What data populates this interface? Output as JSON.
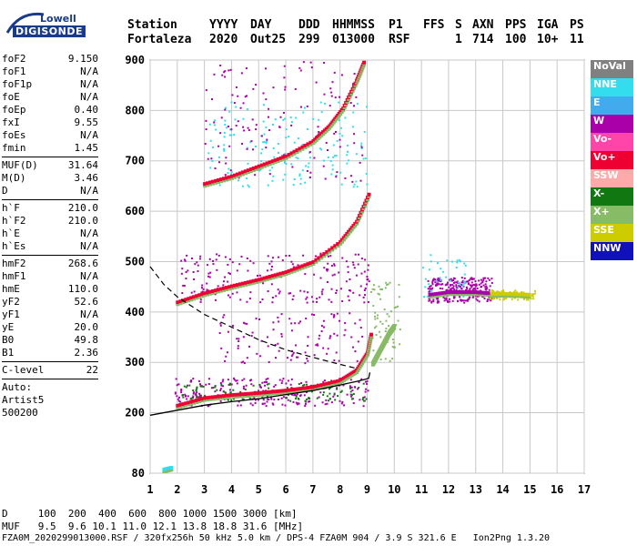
{
  "logo": {
    "brand": "Lowell",
    "name": "DIGISONDE"
  },
  "header": {
    "labels": [
      "Station",
      "YYYY",
      "DAY",
      "DDD",
      "HHMMSS",
      "P1",
      "FFS",
      "S",
      "AXN",
      "PPS",
      "IGA",
      "PS"
    ],
    "values": [
      "Fortaleza",
      "2020",
      "Out25",
      "299",
      "013000",
      "RSF",
      "1",
      "714",
      "100",
      "10+",
      "11"
    ]
  },
  "params": {
    "group1": [
      {
        "label": "foF2",
        "value": "9.150"
      },
      {
        "label": "foF1",
        "value": "N/A"
      },
      {
        "label": "foF1p",
        "value": "N/A"
      },
      {
        "label": "foE",
        "value": "N/A"
      },
      {
        "label": "foEp",
        "value": "0.40"
      },
      {
        "label": "fxI",
        "value": "9.55"
      },
      {
        "label": "foEs",
        "value": "N/A"
      },
      {
        "label": "fmin",
        "value": "1.45"
      }
    ],
    "group2": [
      {
        "label": "MUF(D)",
        "value": "31.64"
      },
      {
        "label": "M(D)",
        "value": "3.46"
      },
      {
        "label": "D",
        "value": "N/A"
      }
    ],
    "group3": [
      {
        "label": "h`F",
        "value": "210.0"
      },
      {
        "label": "h`F2",
        "value": "210.0"
      },
      {
        "label": "h`E",
        "value": "N/A"
      },
      {
        "label": "h`Es",
        "value": "N/A"
      }
    ],
    "group4": [
      {
        "label": "hmF2",
        "value": "268.6"
      },
      {
        "label": "hmF1",
        "value": "N/A"
      },
      {
        "label": "hmE",
        "value": "110.0"
      },
      {
        "label": "yF2",
        "value": "52.6"
      },
      {
        "label": "yF1",
        "value": "N/A"
      },
      {
        "label": "yE",
        "value": "20.0"
      },
      {
        "label": "B0",
        "value": "49.8"
      },
      {
        "label": "B1",
        "value": "2.36"
      }
    ],
    "group5": [
      {
        "label": "C-level",
        "value": "22"
      }
    ],
    "auto": [
      "Auto:",
      "Artist5",
      "500200"
    ]
  },
  "legend": [
    {
      "label": "NoVal",
      "bg": "#808080",
      "fg": "#ffffff"
    },
    {
      "label": "NNE",
      "bg": "#33ddee",
      "fg": "#ffffff"
    },
    {
      "label": "E",
      "bg": "#44aaee",
      "fg": "#ffffff"
    },
    {
      "label": "W",
      "bg": "#aa00aa",
      "fg": "#ffffff"
    },
    {
      "label": "Vo-",
      "bg": "#ff44aa",
      "fg": "#ffffff"
    },
    {
      "label": "Vo+",
      "bg": "#ee0033",
      "fg": "#ffffff"
    },
    {
      "label": "SSW",
      "bg": "#ffaaaa",
      "fg": "#ffffff"
    },
    {
      "label": "X-",
      "bg": "#117711",
      "fg": "#ffffff"
    },
    {
      "label": "X+",
      "bg": "#88bb66",
      "fg": "#ffffff"
    },
    {
      "label": "SSE",
      "bg": "#cccc00",
      "fg": "#ffffff"
    },
    {
      "label": "NNW",
      "bg": "#1111bb",
      "fg": "#ffffff"
    }
  ],
  "chart_data": {
    "type": "scatter",
    "xlim": [
      1,
      17
    ],
    "ylim": [
      80,
      900
    ],
    "xticks": [
      1,
      2,
      3,
      4,
      5,
      6,
      7,
      8,
      9,
      10,
      11,
      12,
      13,
      14,
      15,
      16,
      17
    ],
    "yticks": [
      80,
      200,
      300,
      400,
      500,
      600,
      700,
      800,
      900
    ],
    "grid": true,
    "profile_curve": [
      [
        1,
        195
      ],
      [
        2,
        205
      ],
      [
        3,
        215
      ],
      [
        4,
        222
      ],
      [
        5,
        228
      ],
      [
        6,
        236
      ],
      [
        7,
        244
      ],
      [
        8,
        255
      ],
      [
        8.6,
        262
      ],
      [
        9.05,
        268
      ],
      [
        9.1,
        280
      ]
    ],
    "dashed_curve": [
      [
        1,
        490
      ],
      [
        1.5,
        455
      ],
      [
        2,
        430
      ],
      [
        3,
        395
      ],
      [
        4,
        370
      ],
      [
        5,
        345
      ],
      [
        6,
        325
      ],
      [
        7,
        310
      ],
      [
        8,
        296
      ],
      [
        8.6,
        288
      ]
    ],
    "traces": [
      {
        "series": "Vo+",
        "points": [
          [
            2,
            215
          ],
          [
            3,
            230
          ],
          [
            4,
            236
          ],
          [
            5,
            240
          ],
          [
            6,
            245
          ],
          [
            7,
            252
          ],
          [
            8,
            265
          ],
          [
            8.6,
            285
          ],
          [
            9,
            320
          ],
          [
            9.15,
            360
          ]
        ]
      },
      {
        "series": "Vo+",
        "points": [
          [
            2,
            420
          ],
          [
            3,
            438
          ],
          [
            4,
            452
          ],
          [
            5,
            465
          ],
          [
            6,
            480
          ],
          [
            7,
            500
          ],
          [
            8,
            540
          ],
          [
            8.6,
            580
          ],
          [
            9.1,
            640
          ]
        ]
      },
      {
        "series": "Vo+",
        "points": [
          [
            3,
            655
          ],
          [
            4,
            670
          ],
          [
            5,
            690
          ],
          [
            6,
            710
          ],
          [
            7,
            740
          ],
          [
            7.6,
            770
          ],
          [
            8.1,
            805
          ],
          [
            8.6,
            860
          ],
          [
            8.9,
            900
          ]
        ]
      },
      {
        "series": "W",
        "points": [
          [
            11.3,
            435
          ],
          [
            12,
            440
          ],
          [
            12.5,
            440
          ],
          [
            13,
            440
          ],
          [
            13.5,
            438
          ]
        ]
      },
      {
        "series": "SSE",
        "points": [
          [
            13.6,
            436
          ],
          [
            14,
            437
          ],
          [
            14.5,
            436
          ],
          [
            15,
            435
          ]
        ]
      },
      {
        "series": "X+",
        "points": [
          [
            9.2,
            300
          ],
          [
            9.4,
            320
          ],
          [
            9.6,
            340
          ],
          [
            9.8,
            360
          ],
          [
            10,
            375
          ]
        ]
      },
      {
        "series": "NNE",
        "points": [
          [
            1.5,
            88
          ],
          [
            1.8,
            92
          ]
        ]
      }
    ]
  },
  "footer": {
    "line1": "D     100  200  400  600  800 1000 1500 3000 [km]",
    "line2": "MUF   9.5  9.6 10.1 11.0 12.1 13.8 18.8 31.6 [MHz]",
    "line3": "FZA0M_2020299013000.RSF / 320fx256h 50 kHz 5.0 km / DPS-4 FZA0M 904 / 3.9 S 321.6 E   Ion2Png 1.3.20"
  }
}
